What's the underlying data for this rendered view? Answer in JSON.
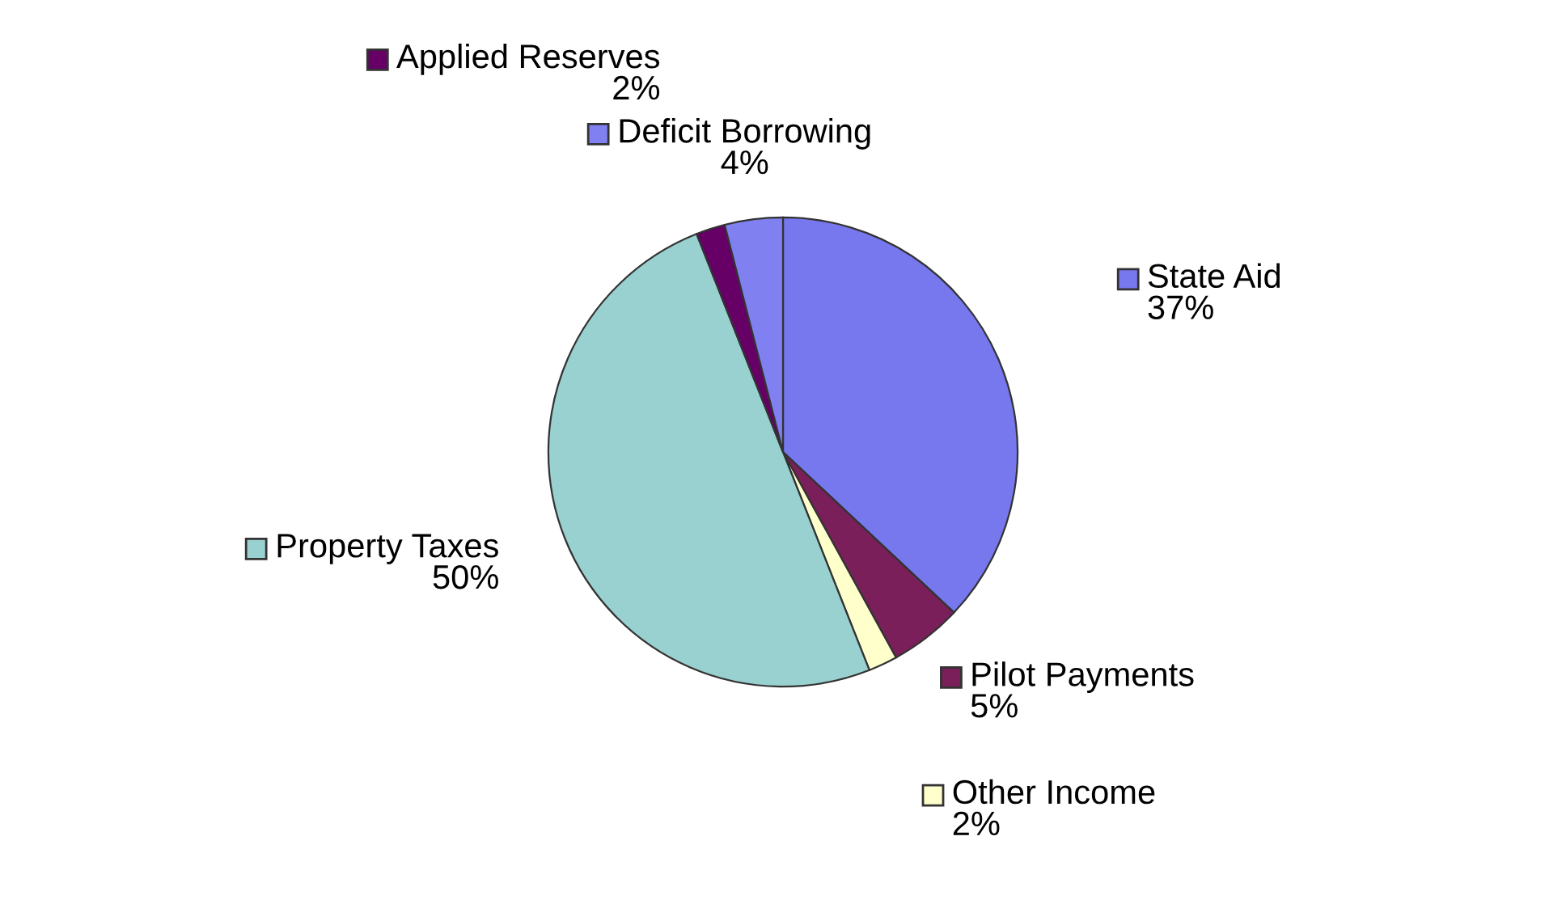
{
  "chart_data": {
    "type": "pie",
    "categories": [
      "State Aid",
      "Pilot Payments",
      "Other Income",
      "Property Taxes",
      "Applied Reserves",
      "Deficit Borrowing"
    ],
    "values": [
      37,
      5,
      2,
      50,
      2,
      4
    ],
    "colors": [
      "#7777ee",
      "#7a1f5a",
      "#ffffcc",
      "#99d0d0",
      "#660066",
      "#8080f0"
    ],
    "legend": "top",
    "value_labels": [
      "37%",
      "5%",
      "2%",
      "50%",
      "2%",
      "4%"
    ]
  }
}
